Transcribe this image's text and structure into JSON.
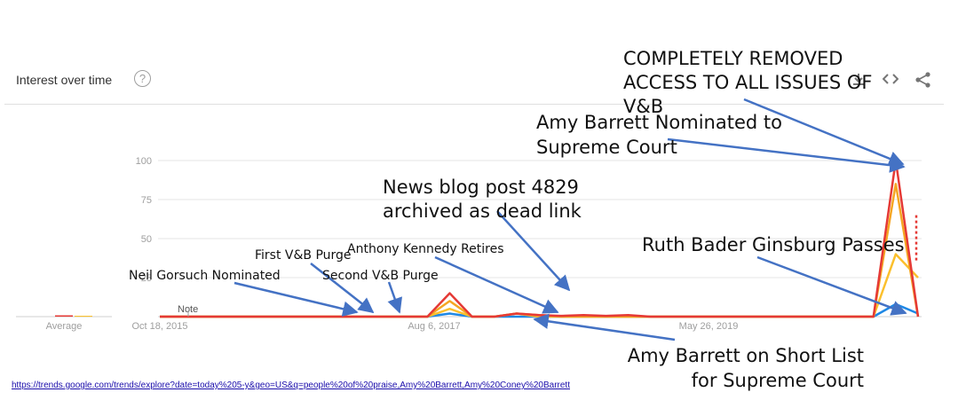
{
  "header": {
    "title": "Interest over time",
    "help_glyph": "?"
  },
  "colors": {
    "red": "#e53935",
    "orange": "#f5a623",
    "yellow": "#fbc02d",
    "blue": "#1e88e5",
    "arrow": "#4472c4",
    "gridline": "#e6e6e6",
    "axis_text": "#9e9e9e"
  },
  "chart_data": {
    "type": "line",
    "y_ticks": [
      "100",
      "75",
      "50",
      "25"
    ],
    "ylim": [
      0,
      100
    ],
    "x_labels": [
      "Oct 18, 2015",
      "Aug 6, 2017",
      "May 26, 2019"
    ],
    "average_label": "Average",
    "note_label": "Note",
    "series": [
      {
        "color": "red",
        "values": [
          0,
          0,
          0,
          0,
          0,
          0,
          0,
          0,
          0,
          0,
          0,
          0,
          0,
          15,
          0,
          0,
          2,
          1,
          0.5,
          1,
          0.5,
          1,
          0,
          0,
          0,
          0,
          0,
          0,
          0,
          0,
          0,
          0,
          0,
          100,
          0
        ],
        "dotted_tail": 65
      },
      {
        "color": "orange",
        "values": [
          0,
          0,
          0,
          0,
          0,
          0,
          0,
          0,
          0,
          0,
          0,
          0,
          0,
          10,
          0,
          0,
          2,
          1,
          0,
          0,
          0,
          0,
          0,
          0,
          0,
          0,
          0,
          0,
          0,
          0,
          0,
          0,
          0,
          85,
          0
        ]
      },
      {
        "color": "yellow",
        "values": [
          0,
          0,
          0,
          0,
          0,
          0,
          0,
          0,
          0,
          0,
          0,
          0,
          0,
          5,
          0,
          0,
          2,
          0,
          0,
          0,
          0,
          0,
          0,
          0,
          0,
          0,
          0,
          0,
          0,
          0,
          0,
          0,
          0,
          40,
          25
        ]
      },
      {
        "color": "blue",
        "values": [
          0,
          0,
          0,
          0,
          0,
          0,
          0,
          0,
          0,
          0,
          0,
          0,
          0,
          2,
          0,
          0,
          0,
          0,
          0,
          0,
          0,
          0,
          0,
          0,
          0,
          0,
          0,
          0,
          0,
          0,
          0,
          0,
          0,
          8,
          2
        ]
      }
    ],
    "annotations": [
      {
        "id": "completely-removed",
        "lines": [
          "COMPLETELY REMOVED",
          "ACCESS TO ALL ISSUES OF",
          "V&B"
        ]
      },
      {
        "id": "amy-nominated",
        "lines": [
          "Amy Barrett Nominated to",
          "Supreme Court"
        ]
      },
      {
        "id": "news-blog",
        "lines": [
          "News blog post 4829",
          "archived as dead link"
        ]
      },
      {
        "id": "rbg-passes",
        "lines": [
          "Ruth Bader Ginsburg Passes"
        ]
      },
      {
        "id": "first-purge",
        "lines": [
          "First V&B Purge"
        ]
      },
      {
        "id": "kennedy-retires",
        "lines": [
          "Anthony Kennedy Retires"
        ]
      },
      {
        "id": "gorsuch",
        "lines": [
          "Neil Gorsuch Nominated"
        ]
      },
      {
        "id": "second-purge",
        "lines": [
          "Second V&B Purge"
        ]
      },
      {
        "id": "short-list",
        "lines": [
          "Amy Barrett on Short List",
          "for Supreme Court"
        ]
      }
    ]
  },
  "footer": {
    "url": "https://trends.google.com/trends/explore?date=today%205-y&geo=US&q=people%20of%20praise,Amy%20Barrett,Amy%20Coney%20Barrett"
  }
}
